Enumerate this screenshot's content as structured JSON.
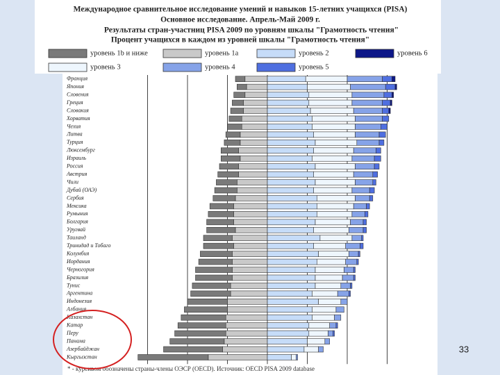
{
  "chart_data": {
    "type": "diverging-bar",
    "title": "Международное сравнительное исследование умений и навыков 15-летних учащихся (PISA)",
    "subtitle": "Основное исследование. Апрель-Май 2009 г.",
    "heading": "Результаты стран-участниц PISA 2009 по уровням шкалы \"Грамотность чтения\"",
    "subheading": "Процент учащихся в каждом из уровней шкалы \"Грамотность чтения\"",
    "note": "* - курсивом обозначены страны-члены ОЭСР (OECD). Источник: OECD PISA 2009 database",
    "categories": [
      "Франция",
      "Япония",
      "Словения",
      "Греция",
      "Словакия",
      "Хорватия",
      "Чехия",
      "Литва",
      "Турция",
      "Люксембург",
      "Израиль",
      "Россия",
      "Австрия",
      "Чили",
      "Дубай (ОАЭ)",
      "Сербия",
      "Мексика",
      "Румыния",
      "Болгария",
      "Уругвай",
      "Таиланд",
      "Тринидад и Тобаго",
      "Колумбия",
      "Иордания",
      "Черногория",
      "Бразилия",
      "Тунис",
      "Аргентина",
      "Индонезия",
      "Албания",
      "Казахстан",
      "Катар",
      "Перу",
      "Панама",
      "Азербайджан",
      "Кыргызстан"
    ],
    "xlim": [
      -90,
      90
    ],
    "xticks": [
      -75,
      -50,
      -25,
      0,
      25,
      50,
      75
    ],
    "grid": true,
    "series": [
      {
        "name": "уровень 1b и ниже",
        "color": "#7a7a7a",
        "direction": "left",
        "values": [
          6,
          6,
          7,
          7,
          8,
          8,
          9,
          9,
          10,
          11,
          12,
          12,
          13,
          13,
          14,
          14,
          15,
          16,
          17,
          18,
          18,
          19,
          20,
          21,
          23,
          23,
          24,
          25,
          25,
          27,
          28,
          30,
          32,
          34,
          37,
          44
        ]
      },
      {
        "name": "уровень 1a",
        "color": "#c9c9c9",
        "direction": "left",
        "values": [
          14,
          13,
          14,
          15,
          15,
          16,
          16,
          17,
          17,
          18,
          17,
          18,
          18,
          19,
          19,
          20,
          21,
          21,
          21,
          20,
          22,
          21,
          22,
          22,
          22,
          22,
          23,
          23,
          25,
          25,
          26,
          26,
          26,
          27,
          28,
          37
        ]
      },
      {
        "name": "уровень 2",
        "color": "#c6dcf8",
        "direction": "right",
        "values": [
          24,
          25,
          26,
          26,
          27,
          28,
          28,
          29,
          30,
          29,
          28,
          30,
          29,
          30,
          29,
          31,
          31,
          31,
          30,
          29,
          33,
          29,
          32,
          31,
          30,
          30,
          30,
          28,
          32,
          28,
          28,
          26,
          26,
          25,
          23,
          15
        ]
      },
      {
        "name": "уровень 3",
        "color": "#eef6fd",
        "direction": "right",
        "values": [
          26,
          27,
          27,
          27,
          27,
          27,
          27,
          26,
          26,
          25,
          25,
          25,
          25,
          25,
          24,
          24,
          23,
          22,
          22,
          22,
          20,
          20,
          19,
          18,
          18,
          17,
          16,
          16,
          14,
          15,
          14,
          13,
          12,
          11,
          9,
          3
        ]
      },
      {
        "name": "уровень 4",
        "color": "#86a3e8",
        "direction": "right",
        "values": [
          22,
          22,
          20,
          19,
          18,
          17,
          16,
          15,
          14,
          14,
          14,
          12,
          12,
          11,
          11,
          9,
          8,
          8,
          8,
          9,
          6,
          9,
          6,
          7,
          6,
          7,
          6,
          7,
          4,
          5,
          4,
          4,
          3,
          3,
          3,
          1
        ]
      },
      {
        "name": "уровень 5",
        "color": "#4f6fe0",
        "direction": "right",
        "values": [
          6,
          6,
          5,
          5,
          4,
          4,
          4,
          4,
          3,
          3,
          4,
          3,
          3,
          2,
          3,
          2,
          2,
          2,
          2,
          2,
          1,
          2,
          1,
          1,
          1,
          1,
          1,
          1,
          0,
          0,
          0,
          1,
          1,
          0,
          0,
          0
        ]
      },
      {
        "name": "уровень 6",
        "color": "#0d1788",
        "direction": "right",
        "values": [
          2,
          1,
          1,
          1,
          1,
          0,
          0,
          0,
          0,
          0,
          0,
          0,
          0,
          0,
          0,
          0,
          0,
          0,
          0,
          0,
          0,
          0,
          0,
          0,
          0,
          0,
          0,
          0,
          0,
          0,
          0,
          0,
          0,
          0,
          0,
          0
        ]
      }
    ]
  },
  "page_number": "33"
}
